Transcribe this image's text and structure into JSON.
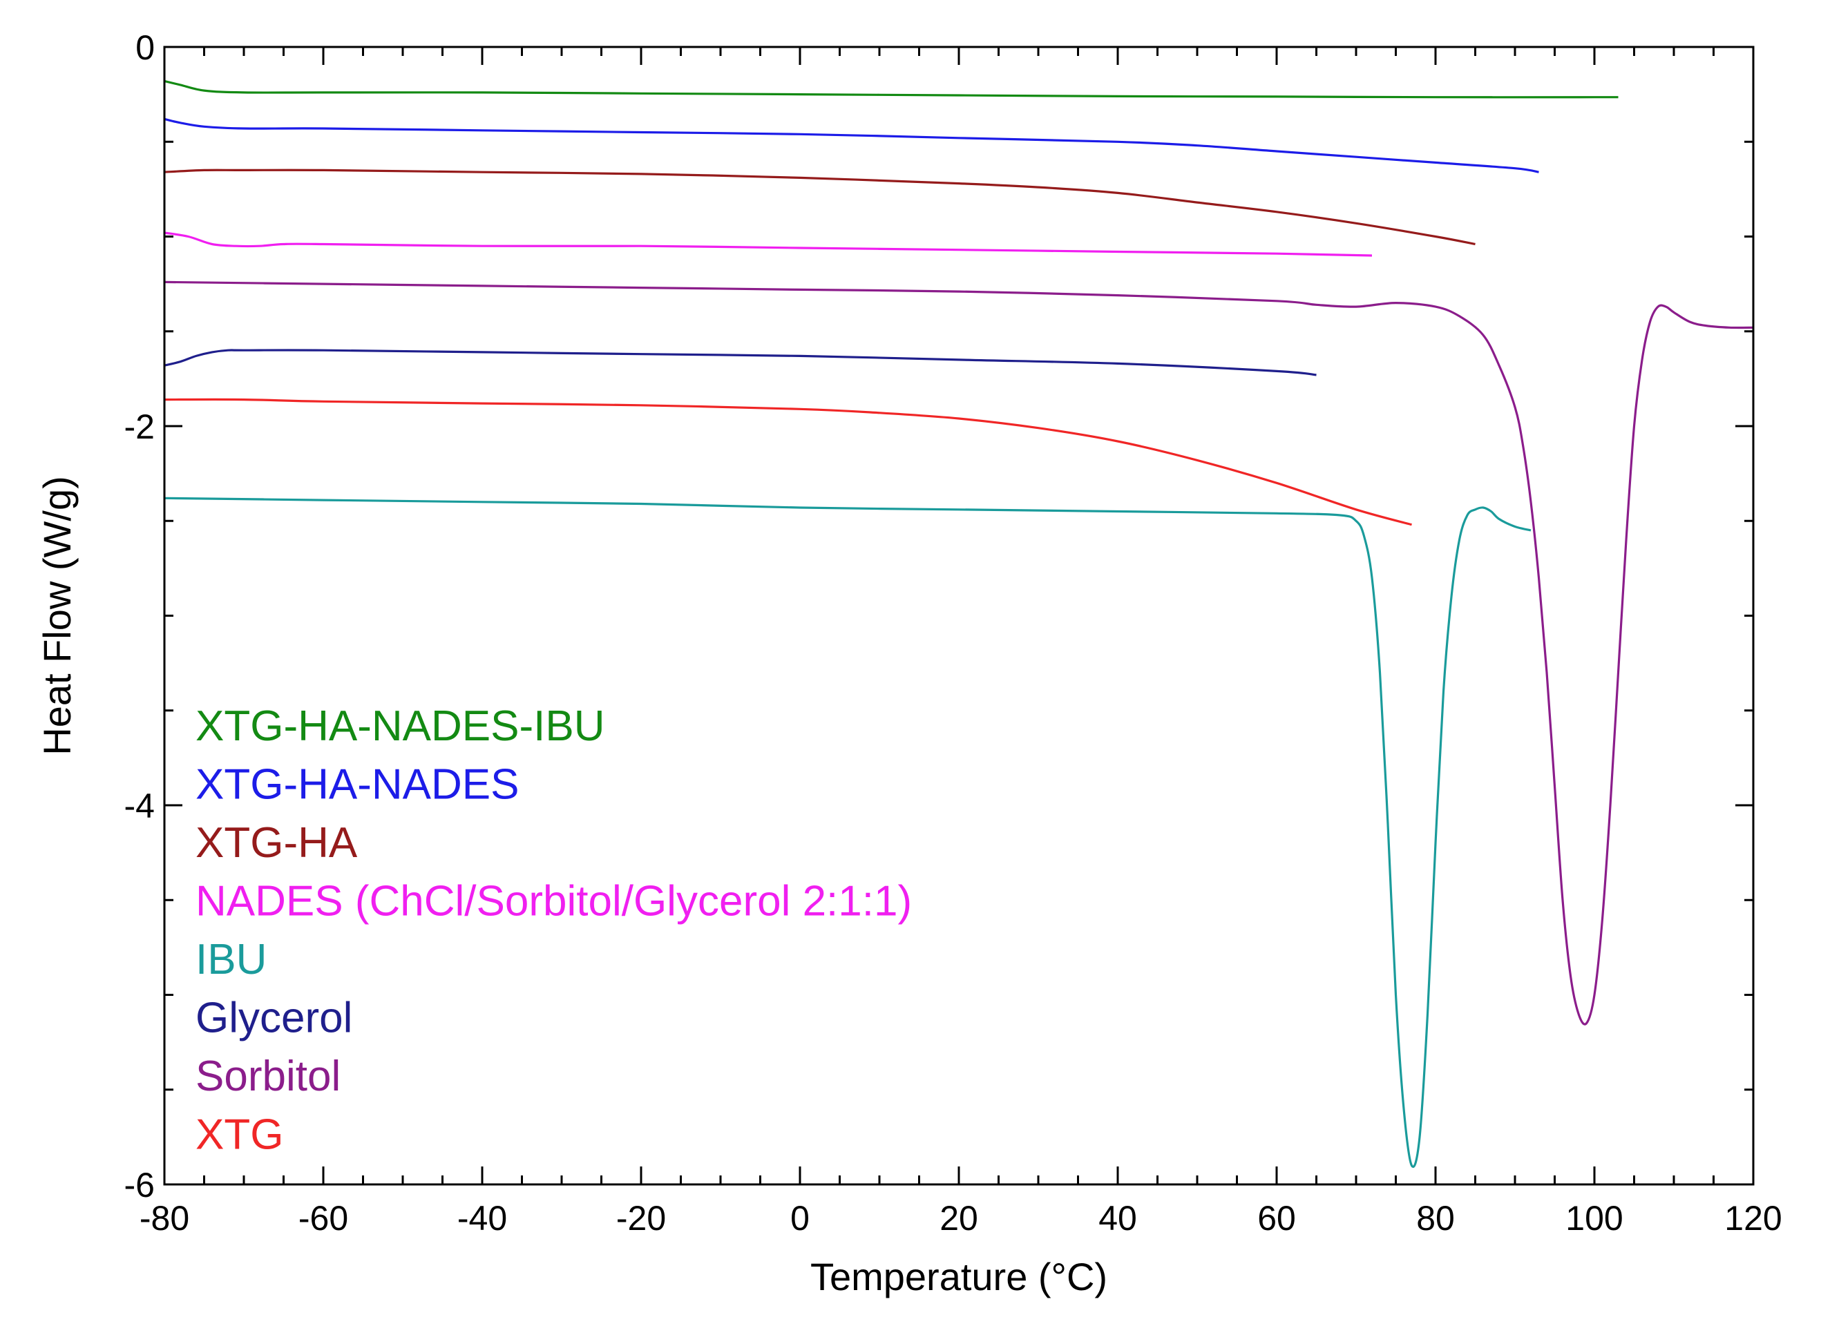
{
  "chart_data": {
    "type": "line",
    "title": "",
    "xlabel": "Temperature (°C)",
    "ylabel": "Heat Flow (W/g)",
    "xlim": [
      -80,
      120
    ],
    "ylim": [
      -6,
      0
    ],
    "xticks": [
      -80,
      -60,
      -40,
      -20,
      0,
      20,
      40,
      60,
      80,
      100,
      120
    ],
    "yticks": [
      -6,
      -4,
      -2,
      0
    ],
    "grid": false,
    "legend": {
      "position": "bottom-left",
      "order": [
        "XTG-HA-NADES-IBU",
        "XTG-HA-NADES",
        "XTG-HA",
        "NADES (ChCl/Sorbitol/Glycerol 2:1:1)",
        "IBU",
        "Glycerol",
        "Sorbitol",
        "XTG"
      ]
    },
    "series": [
      {
        "name": "XTG-HA-NADES-IBU",
        "color": "#138a13",
        "x": [
          -80,
          -78,
          -75,
          -70,
          -60,
          -40,
          -20,
          0,
          20,
          40,
          60,
          80,
          100,
          103
        ],
        "y": [
          -0.18,
          -0.2,
          -0.23,
          -0.24,
          -0.24,
          -0.24,
          -0.245,
          -0.25,
          -0.255,
          -0.26,
          -0.262,
          -0.265,
          -0.265,
          -0.265
        ]
      },
      {
        "name": "XTG-HA-NADES",
        "color": "#1c1ce8",
        "x": [
          -80,
          -78,
          -75,
          -70,
          -60,
          -40,
          -20,
          0,
          20,
          40,
          50,
          60,
          70,
          80,
          90,
          93
        ],
        "y": [
          -0.38,
          -0.4,
          -0.42,
          -0.43,
          -0.43,
          -0.44,
          -0.45,
          -0.46,
          -0.48,
          -0.5,
          -0.52,
          -0.55,
          -0.58,
          -0.61,
          -0.64,
          -0.66
        ]
      },
      {
        "name": "XTG-HA",
        "color": "#951b1b",
        "x": [
          -80,
          -75,
          -70,
          -60,
          -40,
          -20,
          0,
          20,
          30,
          40,
          50,
          60,
          70,
          80,
          85
        ],
        "y": [
          -0.66,
          -0.65,
          -0.65,
          -0.65,
          -0.66,
          -0.67,
          -0.69,
          -0.72,
          -0.74,
          -0.77,
          -0.82,
          -0.87,
          -0.93,
          -1.0,
          -1.04
        ]
      },
      {
        "name": "NADES (ChCl/Sorbitol/Glycerol 2:1:1)",
        "color": "#f01ff0",
        "x": [
          -80,
          -77,
          -74,
          -71,
          -68,
          -65,
          -60,
          -40,
          -20,
          0,
          20,
          40,
          60,
          72
        ],
        "y": [
          -0.98,
          -1.0,
          -1.04,
          -1.05,
          -1.05,
          -1.04,
          -1.04,
          -1.05,
          -1.05,
          -1.06,
          -1.07,
          -1.08,
          -1.09,
          -1.1
        ]
      },
      {
        "name": "IBU",
        "color": "#1a9b9b",
        "x": [
          -80,
          -60,
          -40,
          -20,
          0,
          20,
          40,
          60,
          68,
          70,
          71,
          72,
          73,
          74,
          75,
          76,
          77,
          78,
          79,
          80,
          81,
          82,
          83,
          84,
          85,
          86,
          87,
          88,
          90,
          92
        ],
        "y": [
          -2.38,
          -2.39,
          -2.4,
          -2.41,
          -2.43,
          -2.44,
          -2.45,
          -2.46,
          -2.47,
          -2.5,
          -2.58,
          -2.8,
          -3.3,
          -4.1,
          -5.0,
          -5.6,
          -5.9,
          -5.75,
          -5.1,
          -4.2,
          -3.4,
          -2.9,
          -2.6,
          -2.47,
          -2.44,
          -2.43,
          -2.45,
          -2.49,
          -2.53,
          -2.55
        ]
      },
      {
        "name": "Glycerol",
        "color": "#1f1f8c",
        "x": [
          -80,
          -78,
          -76,
          -74,
          -72,
          -70,
          -60,
          -40,
          -20,
          0,
          20,
          40,
          60,
          65
        ],
        "y": [
          -1.68,
          -1.66,
          -1.63,
          -1.61,
          -1.6,
          -1.6,
          -1.6,
          -1.61,
          -1.62,
          -1.63,
          -1.65,
          -1.67,
          -1.71,
          -1.73
        ]
      },
      {
        "name": "Sorbitol",
        "color": "#8b1d8b",
        "x": [
          -80,
          -60,
          -40,
          -20,
          0,
          20,
          40,
          60,
          65,
          70,
          75,
          80,
          83,
          86,
          88,
          90,
          91,
          92,
          93,
          94,
          95,
          96,
          97,
          98,
          99,
          100,
          101,
          102,
          103,
          104,
          105,
          106,
          107,
          108,
          109,
          110,
          112,
          114,
          117,
          120
        ],
        "y": [
          -1.24,
          -1.25,
          -1.26,
          -1.27,
          -1.28,
          -1.29,
          -1.31,
          -1.34,
          -1.36,
          -1.37,
          -1.35,
          -1.37,
          -1.42,
          -1.52,
          -1.68,
          -1.9,
          -2.1,
          -2.4,
          -2.8,
          -3.3,
          -3.9,
          -4.5,
          -4.9,
          -5.1,
          -5.15,
          -5.0,
          -4.6,
          -4.0,
          -3.3,
          -2.6,
          -2.0,
          -1.65,
          -1.45,
          -1.37,
          -1.37,
          -1.4,
          -1.45,
          -1.47,
          -1.48,
          -1.48
        ]
      },
      {
        "name": "XTG",
        "color": "#f02626",
        "x": [
          -80,
          -70,
          -60,
          -40,
          -20,
          0,
          10,
          20,
          30,
          40,
          50,
          60,
          70,
          77
        ],
        "y": [
          -1.86,
          -1.86,
          -1.87,
          -1.88,
          -1.89,
          -1.91,
          -1.93,
          -1.96,
          -2.01,
          -2.08,
          -2.18,
          -2.3,
          -2.44,
          -2.52
        ]
      }
    ]
  }
}
